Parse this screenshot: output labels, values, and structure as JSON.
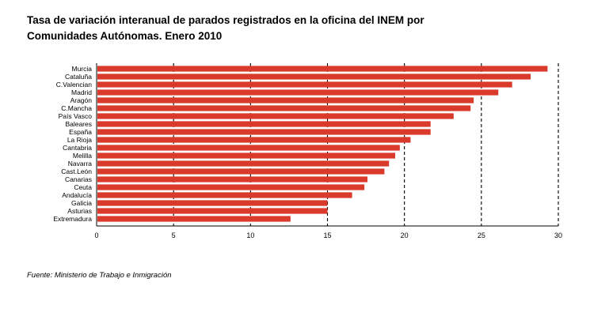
{
  "chart_data": {
    "type": "bar",
    "orientation": "horizontal",
    "title_lines": [
      "Tasa de variación interanual de parados registrados en la oficina del INEM por",
      "Comunidades Autónomas. Enero 2010"
    ],
    "categories": [
      "Murcia",
      "Cataluña",
      "C.Valencian",
      "Madrid",
      "Aragón",
      "C.Mancha",
      "País Vasco",
      "Baleares",
      "España",
      "La Rioja",
      "Cantabria",
      "Melilla",
      "Navarra",
      "Cast.León",
      "Canarias",
      "Ceuta",
      "Andalucía",
      "Galicia",
      "Asturias",
      "Extremadura"
    ],
    "values": [
      29.3,
      28.2,
      27.0,
      26.1,
      24.5,
      24.3,
      23.2,
      21.7,
      21.7,
      20.4,
      19.7,
      19.4,
      19.0,
      18.7,
      17.6,
      17.4,
      16.6,
      15.0,
      15.0,
      12.6
    ],
    "xlim": [
      0,
      30
    ],
    "xticks": [
      "0",
      "5",
      "10",
      "15",
      "20",
      "25",
      "30"
    ],
    "xtick_values": [
      0,
      5,
      10,
      15,
      20,
      25,
      30
    ],
    "grid": "vertical dashed at ticks",
    "bar_color": "#d93a2b"
  },
  "source": "Fuente: Ministerio de Trabajo e Inmigración"
}
